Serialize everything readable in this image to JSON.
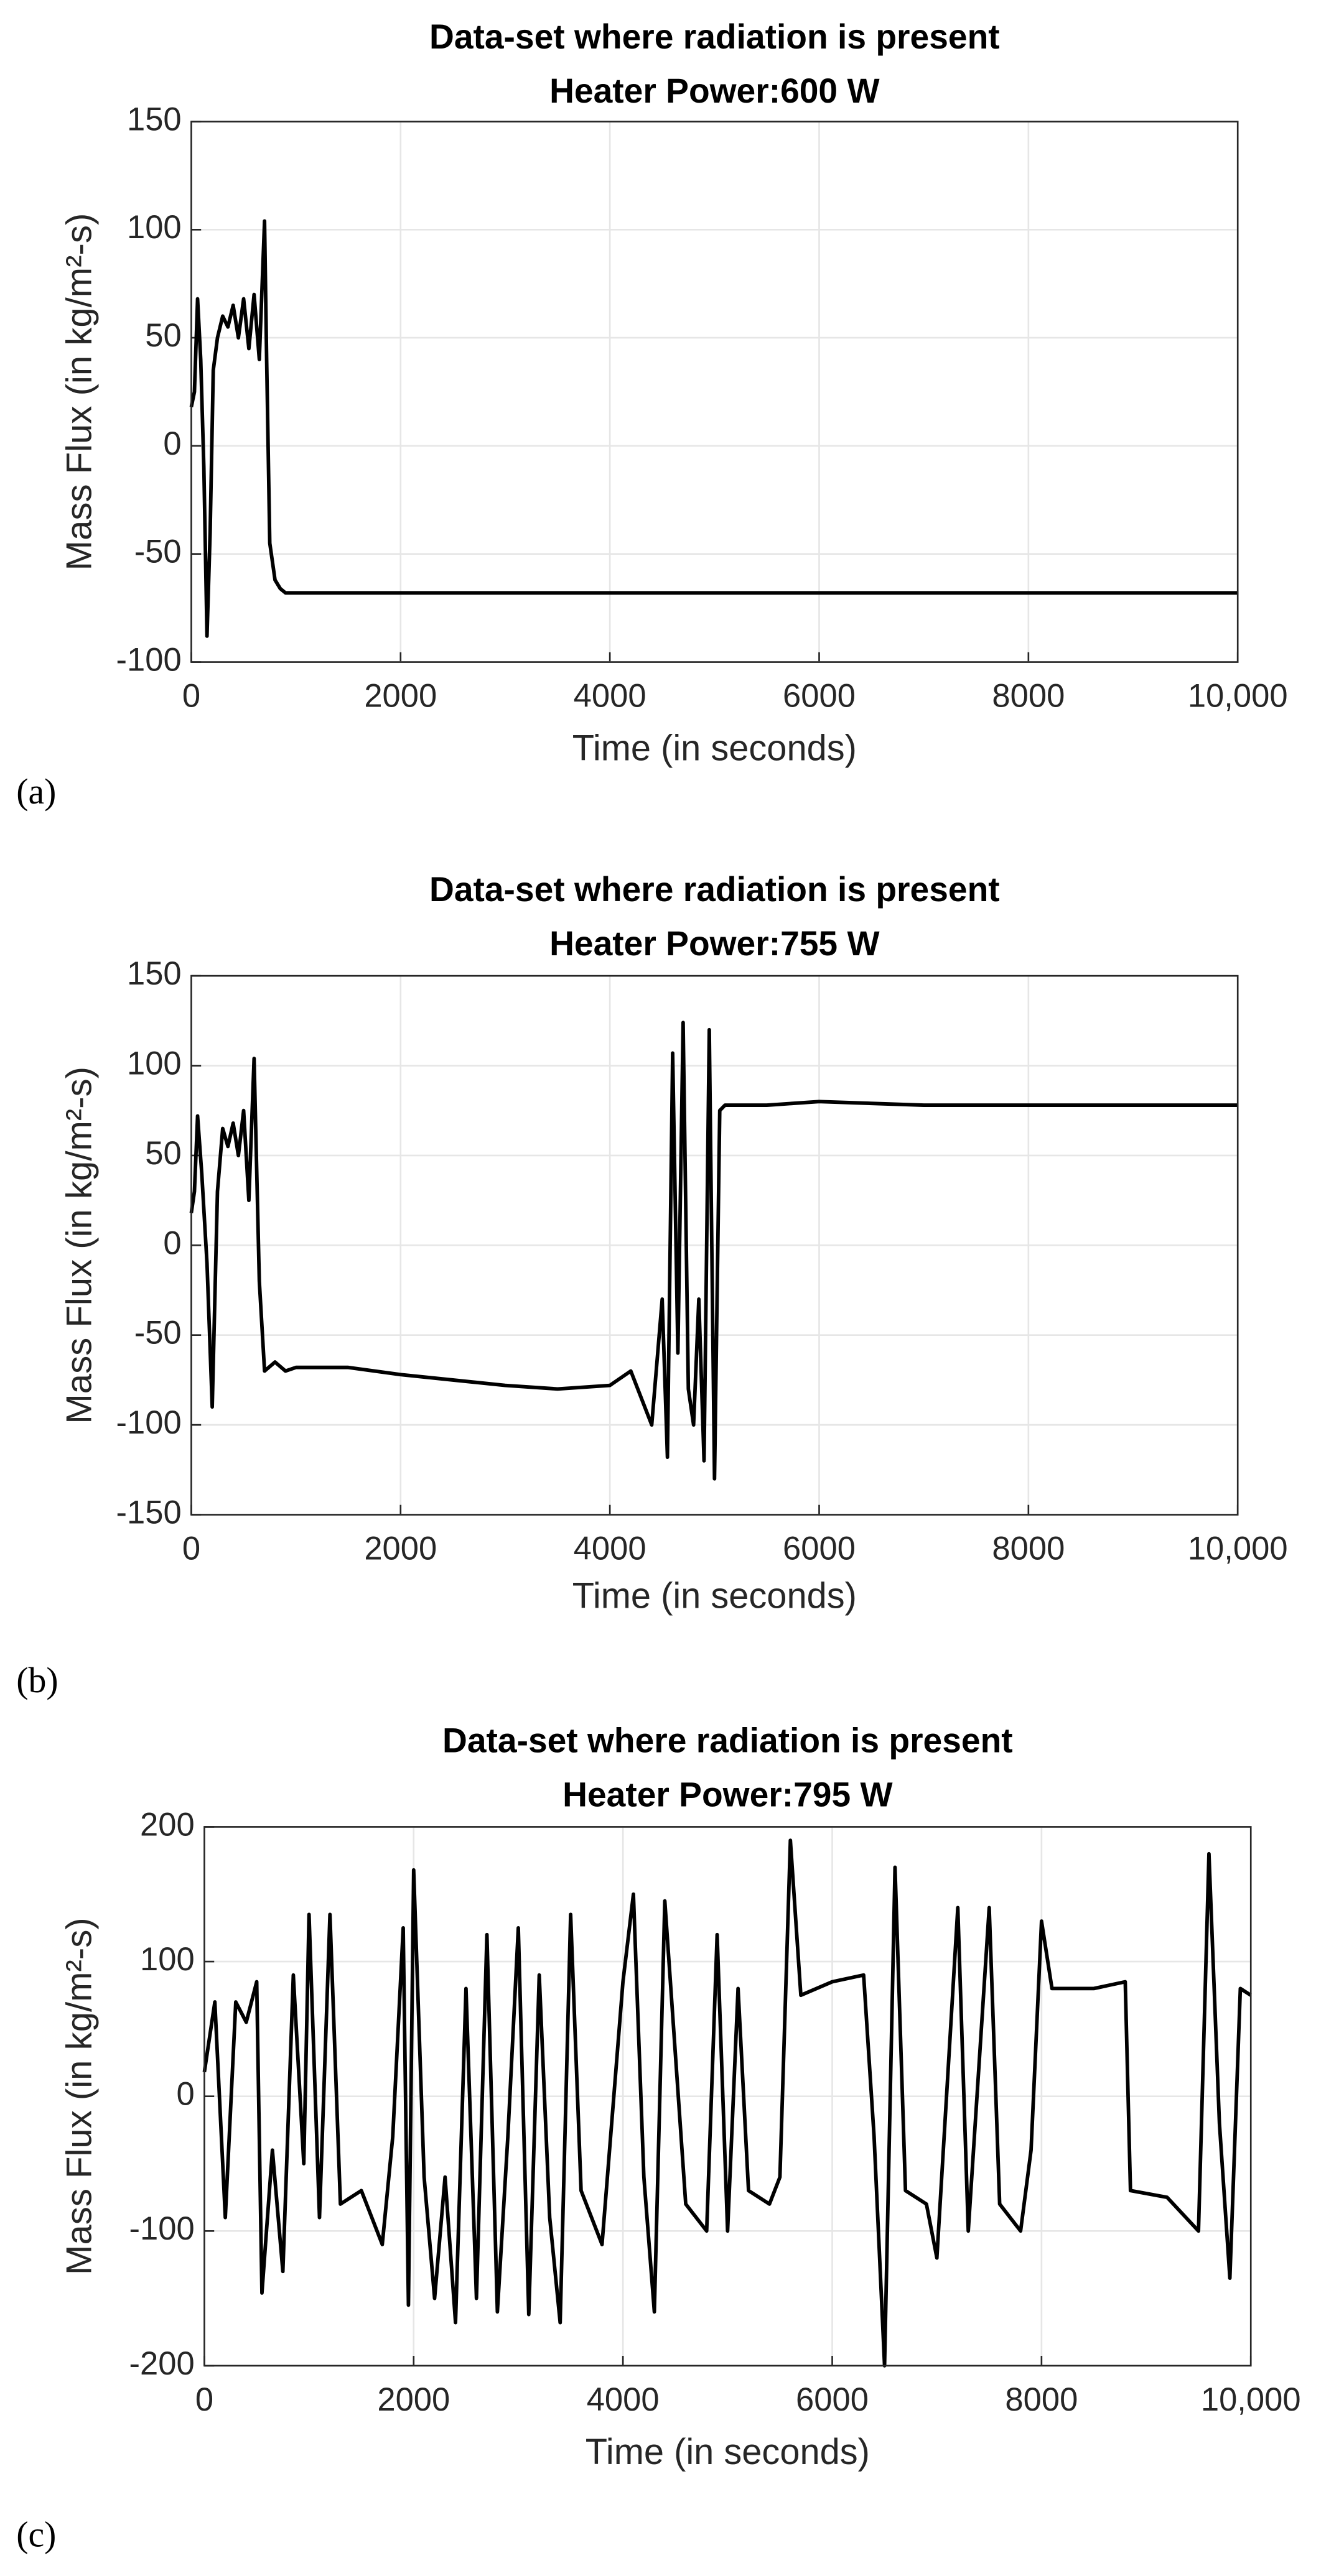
{
  "chart_data": [
    {
      "type": "line",
      "title": "Data-set where radiation is present",
      "subtitle": "Heater Power:600 W",
      "x_label": "Time (in seconds)",
      "y_label": "Mass Flux (in kg/m²-s)",
      "panel_label": "(a)",
      "xlim": [
        0,
        10000
      ],
      "xticks": [
        0,
        2000,
        4000,
        6000,
        8000,
        {
          "value": 10000,
          "label": "10,000"
        }
      ],
      "ylim": [
        -100,
        150
      ],
      "yticks": [
        -100,
        -50,
        0,
        50,
        100,
        150
      ],
      "grid": true,
      "series": [
        {
          "color": "#000000",
          "x": [
            0,
            30,
            60,
            90,
            120,
            150,
            180,
            210,
            250,
            300,
            350,
            400,
            450,
            500,
            550,
            600,
            650,
            700,
            720,
            750,
            800,
            850,
            900,
            1000,
            1500,
            3000,
            5000,
            8000,
            10000
          ],
          "values": [
            18,
            25,
            68,
            40,
            -10,
            -88,
            -40,
            35,
            50,
            60,
            55,
            65,
            50,
            68,
            45,
            70,
            40,
            104,
            40,
            -45,
            -62,
            -66,
            -68,
            -68,
            -68,
            -68,
            -68,
            -68,
            -68
          ]
        }
      ]
    },
    {
      "type": "line",
      "title": "Data-set where radiation is present",
      "subtitle": "Heater Power:755 W",
      "x_label": "Time (in seconds)",
      "y_label": "Mass Flux (in kg/m²-s)",
      "panel_label": "(b)",
      "xlim": [
        0,
        10000
      ],
      "xticks": [
        0,
        2000,
        4000,
        6000,
        8000,
        {
          "value": 10000,
          "label": "10,000"
        }
      ],
      "ylim": [
        -150,
        150
      ],
      "yticks": [
        -150,
        -100,
        -50,
        0,
        50,
        100,
        150
      ],
      "grid": true,
      "series": [
        {
          "color": "#000000",
          "x": [
            0,
            30,
            60,
            100,
            150,
            200,
            250,
            300,
            350,
            400,
            450,
            500,
            550,
            600,
            650,
            700,
            800,
            900,
            1000,
            1500,
            2000,
            2500,
            3000,
            3500,
            4000,
            4200,
            4400,
            4500,
            4550,
            4600,
            4650,
            4700,
            4750,
            4800,
            4850,
            4900,
            4950,
            5000,
            5050,
            5100,
            5500,
            6000,
            7000,
            8000,
            9000,
            10000
          ],
          "values": [
            18,
            30,
            72,
            40,
            -10,
            -90,
            30,
            65,
            55,
            68,
            50,
            75,
            25,
            104,
            -20,
            -70,
            -65,
            -70,
            -68,
            -68,
            -72,
            -75,
            -78,
            -80,
            -78,
            -70,
            -100,
            -30,
            -118,
            107,
            -60,
            124,
            -80,
            -100,
            -30,
            -120,
            120,
            -130,
            75,
            78,
            78,
            80,
            78,
            78,
            78,
            78
          ]
        }
      ]
    },
    {
      "type": "line",
      "title": "Data-set where radiation is present",
      "subtitle": "Heater Power:795 W",
      "x_label": "Time (in seconds)",
      "y_label": "Mass Flux (in kg/m²-s)",
      "panel_label": "(c)",
      "xlim": [
        0,
        10000
      ],
      "xticks": [
        0,
        2000,
        4000,
        6000,
        8000,
        {
          "value": 10000,
          "label": "10,000"
        }
      ],
      "ylim": [
        -200,
        200
      ],
      "yticks": [
        -200,
        -100,
        0,
        100,
        200
      ],
      "grid": true,
      "series": [
        {
          "color": "#000000",
          "x": [
            0,
            100,
            200,
            300,
            400,
            500,
            550,
            650,
            750,
            850,
            950,
            1000,
            1100,
            1200,
            1300,
            1500,
            1700,
            1800,
            1900,
            1950,
            2000,
            2100,
            2200,
            2300,
            2400,
            2500,
            2600,
            2700,
            2800,
            2900,
            3000,
            3100,
            3200,
            3300,
            3400,
            3500,
            3600,
            3800,
            4000,
            4100,
            4200,
            4300,
            4400,
            4600,
            4800,
            4900,
            5000,
            5100,
            5200,
            5400,
            5500,
            5600,
            5700,
            6000,
            6300,
            6400,
            6500,
            6600,
            6700,
            6900,
            7000,
            7200,
            7300,
            7500,
            7600,
            7800,
            7900,
            8000,
            8100,
            8500,
            8800,
            8850,
            9200,
            9500,
            9600,
            9700,
            9800,
            9900,
            10000
          ],
          "values": [
            18,
            70,
            -90,
            70,
            55,
            85,
            -146,
            -40,
            -130,
            90,
            -50,
            135,
            -90,
            135,
            -80,
            -70,
            -110,
            -30,
            125,
            -155,
            168,
            -60,
            -150,
            -60,
            -168,
            80,
            -150,
            120,
            -160,
            -30,
            125,
            -162,
            90,
            -90,
            -168,
            135,
            -70,
            -110,
            85,
            150,
            -60,
            -160,
            145,
            -80,
            -100,
            120,
            -100,
            80,
            -70,
            -80,
            -60,
            190,
            75,
            85,
            90,
            -30,
            -200,
            170,
            -70,
            -80,
            -120,
            140,
            -100,
            140,
            -80,
            -100,
            -40,
            130,
            80,
            80,
            85,
            -70,
            -75,
            -100,
            180,
            -20,
            -135,
            80,
            75
          ]
        }
      ]
    }
  ]
}
